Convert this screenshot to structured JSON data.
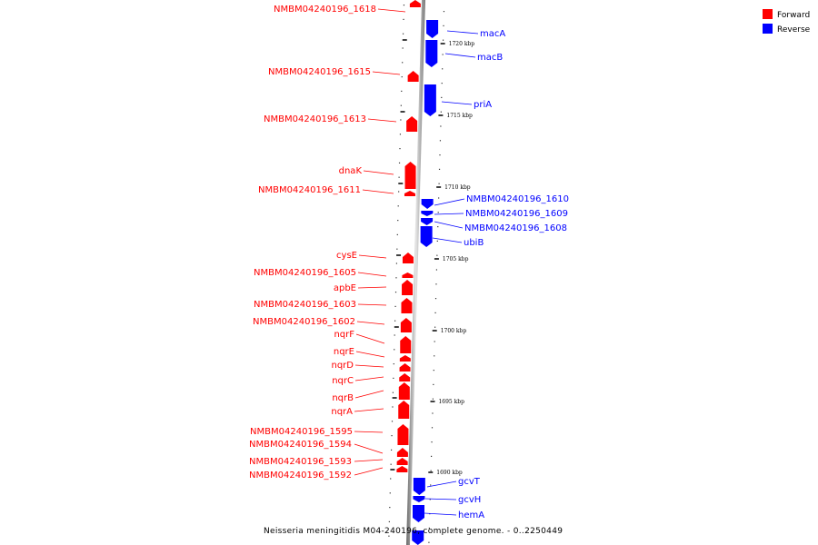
{
  "legend": {
    "forward_label": "Forward",
    "reverse_label": "Reverse",
    "forward_color": "#ff0000",
    "reverse_color": "#0000ff"
  },
  "caption": "Neisseria meningitidis M04-240196, complete genome. - 0..2250449",
  "ticks": [
    "1720 kbp",
    "1715 kbp",
    "1710 kbp",
    "1705 kbp",
    "1700 kbp",
    "1695 kbp",
    "1690 kbp"
  ],
  "genes_forward": [
    "NMBM04240196_1618",
    "NMBM04240196_1615",
    "NMBM04240196_1613",
    "dnaK",
    "NMBM04240196_1611",
    "cysE",
    "NMBM04240196_1605",
    "apbE",
    "NMBM04240196_1603",
    "NMBM04240196_1602",
    "nqrF",
    "nqrE",
    "nqrD",
    "nqrC",
    "nqrB",
    "nqrA",
    "NMBM04240196_1595",
    "NMBM04240196_1594",
    "NMBM04240196_1593",
    "NMBM04240196_1592"
  ],
  "genes_reverse": [
    "macA",
    "macB",
    "priA",
    "NMBM04240196_1610",
    "NMBM04240196_1609",
    "NMBM04240196_1608",
    "ubiB",
    "gcvT",
    "gcvH",
    "hemA"
  ]
}
